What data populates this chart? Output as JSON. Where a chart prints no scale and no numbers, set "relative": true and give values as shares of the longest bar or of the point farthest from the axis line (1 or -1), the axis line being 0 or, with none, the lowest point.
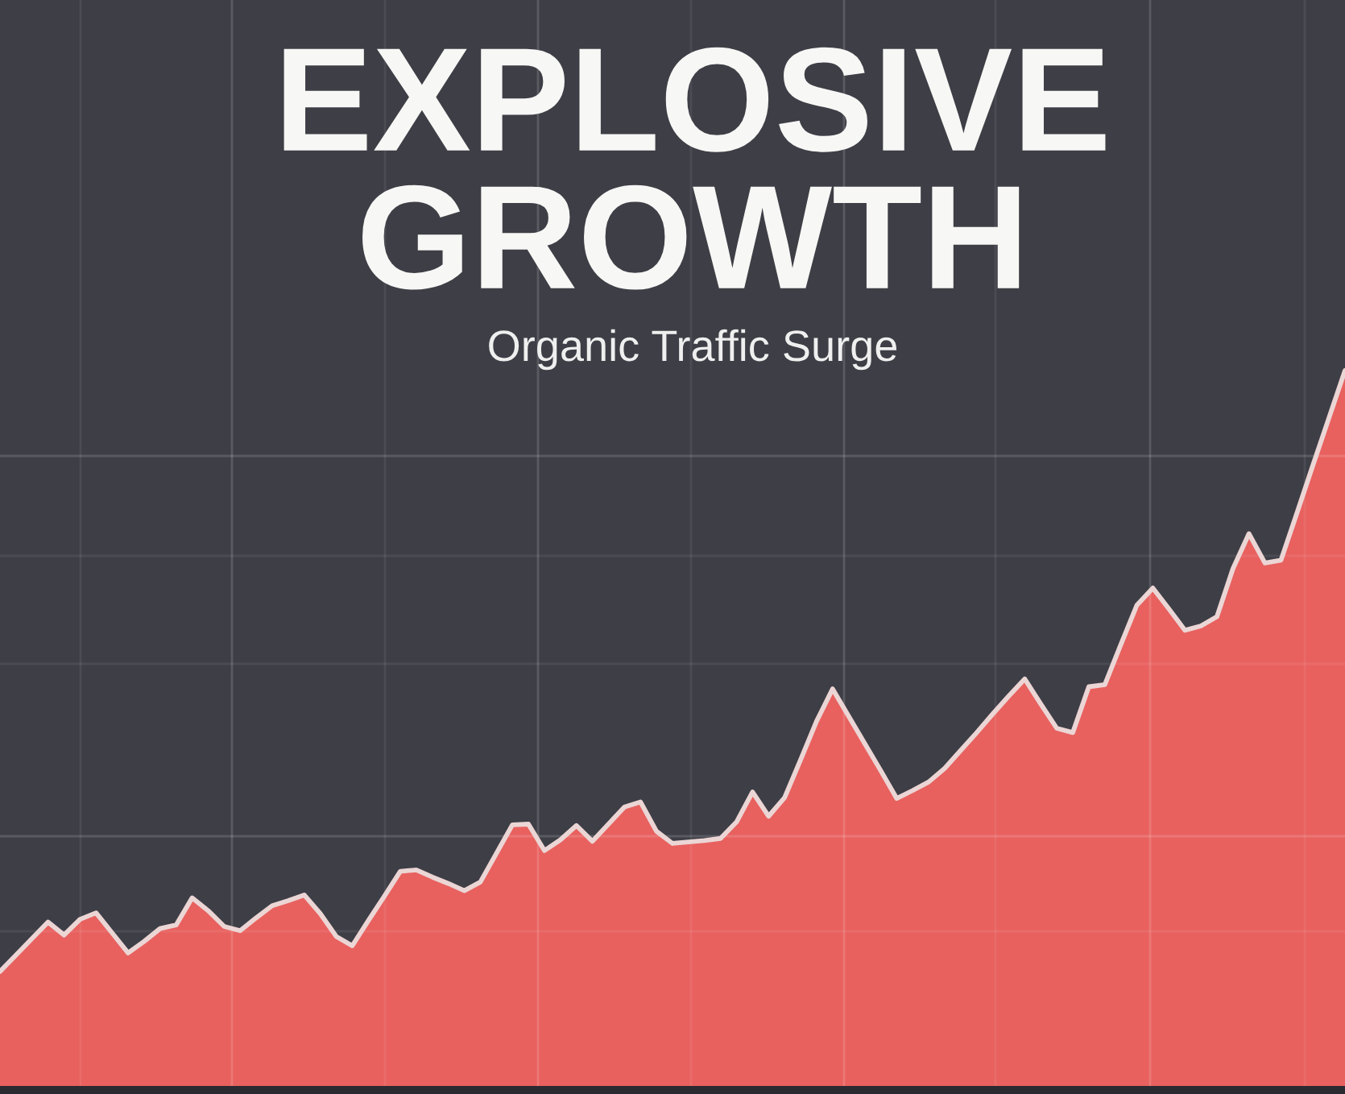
{
  "chart_data": {
    "type": "area",
    "title": "EXPLOSIVE GROWTH",
    "subtitle": "Organic Traffic Surge",
    "relative": true,
    "grid": true,
    "categories": [
      null,
      null,
      null,
      null,
      null,
      null,
      null,
      null,
      null,
      null,
      null,
      null,
      null,
      null,
      null,
      null,
      null,
      null,
      null,
      null,
      null,
      null,
      null,
      null,
      null,
      null,
      null,
      null,
      null,
      null,
      null,
      null,
      null,
      null,
      null,
      null,
      null,
      null,
      null,
      null,
      null,
      null,
      null,
      null,
      null,
      null,
      null,
      null,
      null,
      null,
      null,
      null,
      null,
      null,
      null,
      null,
      null,
      null,
      null,
      null,
      null,
      null,
      null,
      null,
      null,
      null,
      null,
      null,
      null,
      null,
      null,
      null,
      null,
      null,
      null,
      null,
      null,
      null,
      null,
      null,
      null,
      null,
      null,
      null,
      null
    ],
    "series": [
      {
        "color": "#e8615f",
        "values": [
          0.16,
          0.183,
          0.206,
          0.229,
          0.211,
          0.233,
          0.242,
          0.214,
          0.186,
          0.202,
          0.22,
          0.225,
          0.263,
          0.245,
          0.223,
          0.217,
          0.235,
          0.252,
          0.259,
          0.267,
          0.241,
          0.209,
          0.196,
          0.231,
          0.265,
          0.3,
          0.302,
          0.292,
          0.283,
          0.273,
          0.285,
          0.325,
          0.365,
          0.366,
          0.329,
          0.344,
          0.364,
          0.342,
          0.366,
          0.39,
          0.397,
          0.356,
          0.339,
          0.341,
          0.343,
          0.346,
          0.369,
          0.411,
          0.377,
          0.403,
          0.456,
          0.51,
          0.555,
          0.517,
          0.479,
          0.441,
          0.402,
          0.413,
          0.425,
          0.444,
          0.469,
          0.494,
          0.52,
          0.545,
          0.569,
          0.534,
          0.5,
          0.494,
          0.558,
          0.561,
          0.617,
          0.672,
          0.696,
          0.667,
          0.637,
          0.643,
          0.656,
          0.723,
          0.772,
          0.731,
          0.735,
          0.801,
          0.868,
          0.934,
          1.0
        ]
      }
    ]
  }
}
